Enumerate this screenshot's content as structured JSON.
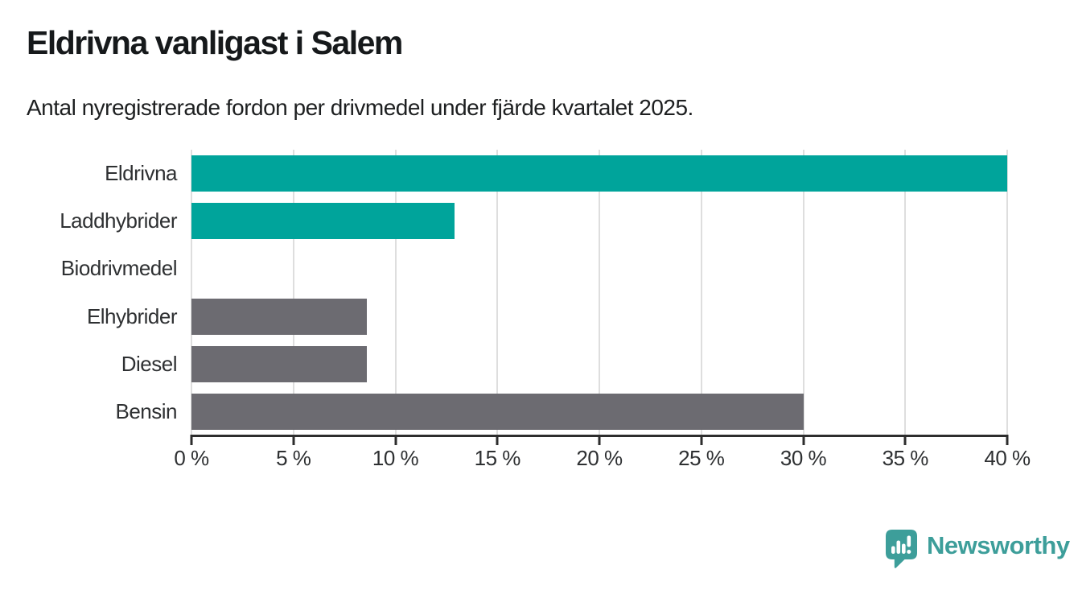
{
  "header": {
    "title": "Eldrivna vanligast i Salem",
    "subtitle": "Antal nyregistrerade fordon per drivmedel under fjärde kvartalet 2025."
  },
  "chart_data": {
    "type": "bar",
    "orientation": "horizontal",
    "title": "Eldrivna vanligast i Salem",
    "subtitle": "Antal nyregistrerade fordon per drivmedel under fjärde kvartalet 2025.",
    "categories": [
      "Eldrivna",
      "Laddhybrider",
      "Biodrivmedel",
      "Elhybrider",
      "Diesel",
      "Bensin"
    ],
    "values": [
      40,
      12.9,
      0,
      8.6,
      8.6,
      30
    ],
    "unit": "%",
    "xlabel": "",
    "ylabel": "",
    "xlim": [
      0,
      40
    ],
    "x_ticks": [
      0,
      5,
      10,
      15,
      20,
      25,
      30,
      35,
      40
    ],
    "x_tick_labels": [
      "0 %",
      "5 %",
      "10 %",
      "15 %",
      "20 %",
      "25 %",
      "30 %",
      "35 %",
      "40 %"
    ],
    "grid": "vertical-gridlines-on",
    "legend": "none",
    "bar_color_keys": [
      "teal",
      "teal",
      "gray",
      "gray",
      "gray",
      "gray"
    ]
  },
  "colors": {
    "teal": "#00a49b",
    "gray": "#6c6b71",
    "gridline": "#dedede",
    "axis": "#2d2d2d",
    "label_text": "#2e3032",
    "title_text": "#16191b",
    "logo_teal": "#3d9e9a"
  },
  "footer": {
    "brand": "Newsworthy",
    "logo_icon": "newsworthy-bar-chart-speech-bubble"
  }
}
